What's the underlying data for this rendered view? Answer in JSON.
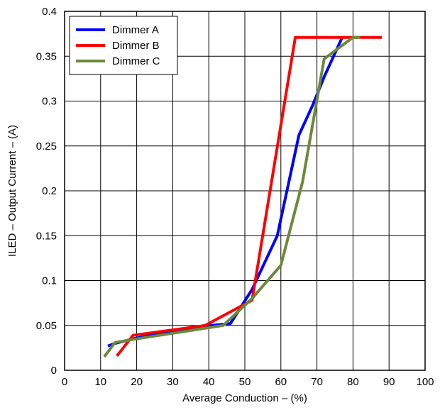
{
  "chart_data": {
    "type": "line",
    "title": "",
    "xlabel": "Average Conduction – (%)",
    "ylabel": "ILED – Output Current – (A)",
    "xlim": [
      0,
      100
    ],
    "ylim": [
      0,
      0.4
    ],
    "xticks": [
      0,
      10,
      20,
      30,
      40,
      50,
      60,
      70,
      80,
      90,
      100
    ],
    "yticks": [
      0,
      0.05,
      0.1,
      0.15,
      0.2,
      0.25,
      0.3,
      0.35,
      0.4
    ],
    "xtick_labels": [
      "0",
      "10",
      "20",
      "30",
      "40",
      "50",
      "60",
      "70",
      "80",
      "90",
      "100"
    ],
    "ytick_labels": [
      "0",
      "0.05",
      "0.1",
      "0.15",
      "0.2",
      "0.25",
      "0.3",
      "0.35",
      "0.4"
    ],
    "grid": true,
    "legend_position": "top-left",
    "series": [
      {
        "name": "Dimmer A",
        "color": "#0000ff",
        "x": [
          12,
          14,
          20,
          38,
          46,
          52,
          59,
          65,
          69,
          72,
          77
        ],
        "y": [
          0.027,
          0.03,
          0.036,
          0.049,
          0.052,
          0.09,
          0.15,
          0.262,
          0.297,
          0.327,
          0.371
        ]
      },
      {
        "name": "Dimmer B",
        "color": "#ff0000",
        "x": [
          14.5,
          19,
          39,
          52,
          64,
          78,
          88
        ],
        "y": [
          0.016,
          0.039,
          0.05,
          0.078,
          0.371,
          0.371,
          0.371
        ]
      },
      {
        "name": "Dimmer C",
        "color": "#6a8a3a",
        "x": [
          11,
          14,
          20,
          44,
          52,
          60,
          66,
          72,
          80,
          82
        ],
        "y": [
          0.015,
          0.031,
          0.035,
          0.05,
          0.08,
          0.117,
          0.21,
          0.347,
          0.371,
          0.371
        ]
      }
    ]
  }
}
